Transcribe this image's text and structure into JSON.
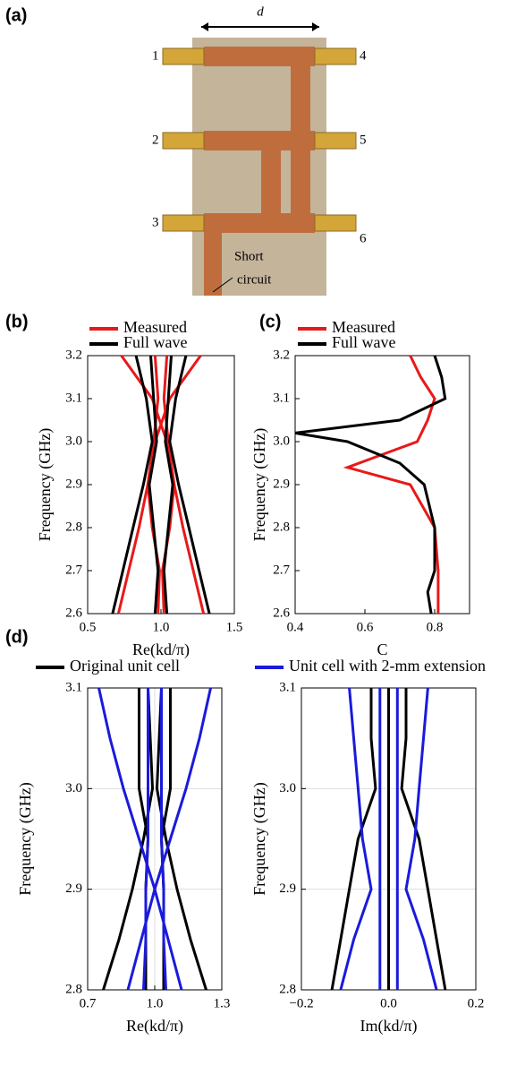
{
  "photo": {
    "label": "(a)",
    "dimension": "d",
    "ports": [
      "1",
      "2",
      "3",
      "4",
      "5",
      "6"
    ],
    "note": [
      "Short",
      "circuit"
    ]
  },
  "chart_data": [
    {
      "type": "line",
      "panel": "(b)",
      "xlabel": "Re(kd/π)",
      "ylabel": "Frequency (GHz)",
      "xlim": [
        0.5,
        1.5
      ],
      "xticks": [
        0.5,
        {
          "value": 1,
          "label": "1.0"
        },
        1.5
      ],
      "ylim": [
        2.6,
        3.2
      ],
      "yticks": [
        2.6,
        2.7,
        2.8,
        2.9,
        {
          "value": 3,
          "label": "3.0"
        },
        3.1,
        3.2
      ],
      "grid": false,
      "series": [
        {
          "name": "Measured",
          "color": "#e8191a",
          "branches": [
            {
              "y": [
                2.6,
                2.7,
                2.8,
                2.9,
                3.0,
                3.1,
                3.2
              ],
              "x": [
                0.71,
                0.78,
                0.85,
                0.91,
                0.96,
                1.06,
                1.27
              ]
            },
            {
              "y": [
                2.6,
                2.7,
                2.8,
                2.9,
                3.0,
                3.1,
                3.2
              ],
              "x": [
                1.29,
                1.22,
                1.15,
                1.09,
                1.04,
                0.94,
                0.73
              ]
            },
            {
              "y": [
                2.6,
                2.7,
                2.8,
                2.9,
                3.0,
                3.1,
                3.2
              ],
              "x": [
                0.98,
                0.99,
                0.94,
                0.91,
                0.95,
                0.98,
                0.96
              ]
            },
            {
              "y": [
                2.6,
                2.7,
                2.8,
                2.9,
                3.0,
                3.1,
                3.2
              ],
              "x": [
                1.02,
                1.01,
                1.06,
                1.09,
                1.05,
                1.02,
                1.04
              ]
            }
          ]
        },
        {
          "name": "Full wave",
          "color": "#000000",
          "branches": [
            {
              "y": [
                2.6,
                2.7,
                2.8,
                2.9,
                3.0,
                3.1,
                3.2
              ],
              "x": [
                0.67,
                0.74,
                0.81,
                0.88,
                0.94,
                0.9,
                0.83
              ]
            },
            {
              "y": [
                2.6,
                2.7,
                2.8,
                2.9,
                3.0,
                3.1,
                3.2
              ],
              "x": [
                1.33,
                1.26,
                1.19,
                1.12,
                1.06,
                1.1,
                1.17
              ]
            },
            {
              "y": [
                2.6,
                2.7,
                2.8,
                2.9,
                3.0,
                3.1,
                3.2
              ],
              "x": [
                0.96,
                0.98,
                0.95,
                0.92,
                0.97,
                0.95,
                0.93
              ]
            },
            {
              "y": [
                2.6,
                2.7,
                2.8,
                2.9,
                3.0,
                3.1,
                3.2
              ],
              "x": [
                1.04,
                1.02,
                1.05,
                1.08,
                1.03,
                1.05,
                1.07
              ]
            }
          ]
        }
      ]
    },
    {
      "type": "line",
      "panel": "(c)",
      "xlabel": "C",
      "ylabel": "Frequency (GHz)",
      "xlim": [
        0.4,
        0.9
      ],
      "xticks": [
        0.4,
        0.6,
        0.8
      ],
      "ylim": [
        2.6,
        3.2
      ],
      "yticks": [
        2.6,
        2.7,
        2.8,
        2.9,
        {
          "value": 3,
          "label": "3.0"
        },
        3.1,
        3.2
      ],
      "grid": false,
      "series": [
        {
          "name": "Measured",
          "color": "#e8191a",
          "branches": [
            {
              "y": [
                2.6,
                2.7,
                2.8,
                2.9,
                2.94,
                2.97,
                3.0,
                3.05,
                3.1,
                3.15,
                3.2
              ],
              "x": [
                0.81,
                0.81,
                0.8,
                0.73,
                0.55,
                0.65,
                0.75,
                0.78,
                0.8,
                0.76,
                0.73
              ]
            }
          ]
        },
        {
          "name": "Full wave",
          "color": "#000000",
          "branches": [
            {
              "y": [
                2.6,
                2.65,
                2.7,
                2.8,
                2.9,
                2.95,
                3.0,
                3.02,
                3.05,
                3.1,
                3.15,
                3.2
              ],
              "x": [
                0.79,
                0.78,
                0.8,
                0.8,
                0.77,
                0.7,
                0.55,
                0.4,
                0.7,
                0.83,
                0.82,
                0.8
              ]
            }
          ]
        }
      ]
    },
    {
      "type": "line",
      "panel": "(d)",
      "xlabel": "Re(kd/π)",
      "ylabel": "Frequency (GHz)",
      "xlim": [
        0.7,
        1.3
      ],
      "xticks": [
        0.7,
        {
          "value": 1,
          "label": "1.0"
        },
        1.3
      ],
      "ylim": [
        2.8,
        3.1
      ],
      "yticks": [
        2.8,
        2.9,
        {
          "value": 3,
          "label": "3.0"
        },
        3.1
      ],
      "grid": true,
      "series": [
        {
          "name": "Original unit cell",
          "color": "#000000",
          "branches": [
            {
              "y": [
                2.8,
                2.85,
                2.9,
                2.95,
                3.0,
                3.05,
                3.1
              ],
              "x": [
                0.77,
                0.84,
                0.9,
                0.95,
                0.99,
                0.98,
                0.97
              ]
            },
            {
              "y": [
                2.8,
                2.85,
                2.9,
                2.95,
                3.0,
                3.05,
                3.1
              ],
              "x": [
                1.23,
                1.16,
                1.1,
                1.05,
                1.01,
                1.02,
                1.03
              ]
            },
            {
              "y": [
                2.8,
                2.85,
                2.9,
                2.95,
                3.0,
                3.05,
                3.1
              ],
              "x": [
                0.96,
                0.96,
                0.96,
                0.97,
                0.93,
                0.93,
                0.93
              ]
            },
            {
              "y": [
                2.8,
                2.85,
                2.9,
                2.95,
                3.0,
                3.05,
                3.1
              ],
              "x": [
                1.04,
                1.04,
                1.04,
                1.03,
                1.07,
                1.07,
                1.07
              ]
            }
          ]
        },
        {
          "name": "Unit cell with 2-mm extension",
          "color": "#1a1adc",
          "branches": [
            {
              "y": [
                2.8,
                2.85,
                2.9,
                2.95,
                3.0,
                3.05,
                3.1
              ],
              "x": [
                1.12,
                1.06,
                1.0,
                0.93,
                0.86,
                0.8,
                0.75
              ]
            },
            {
              "y": [
                2.8,
                2.85,
                2.9,
                2.95,
                3.0,
                3.05,
                3.1
              ],
              "x": [
                0.88,
                0.94,
                1.0,
                1.07,
                1.14,
                1.2,
                1.25
              ]
            },
            {
              "y": [
                2.8,
                2.85,
                2.9,
                2.95,
                3.0,
                3.05,
                3.1
              ],
              "x": [
                0.95,
                0.96,
                0.96,
                0.97,
                0.97,
                0.97,
                0.97
              ]
            },
            {
              "y": [
                2.8,
                2.85,
                2.9,
                2.95,
                3.0,
                3.05,
                3.1
              ],
              "x": [
                1.05,
                1.04,
                1.04,
                1.03,
                1.03,
                1.03,
                1.03
              ]
            }
          ]
        }
      ]
    },
    {
      "type": "line",
      "xlabel": "Im(kd/π)",
      "ylabel": "Frequency (GHz)",
      "xlim": [
        -0.2,
        0.2
      ],
      "xticks": [
        {
          "value": -0.2,
          "label": "−0.2"
        },
        {
          "value": 0,
          "label": "0.0"
        },
        0.2
      ],
      "ylim": [
        2.8,
        3.1
      ],
      "yticks": [
        2.8,
        2.9,
        {
          "value": 3,
          "label": "3.0"
        },
        3.1
      ],
      "grid": true,
      "series": [
        {
          "color": "#000000",
          "branches": [
            {
              "y": [
                2.8,
                2.85,
                2.9,
                2.95,
                3.0,
                3.05,
                3.1
              ],
              "x": [
                -0.13,
                -0.11,
                -0.09,
                -0.07,
                -0.03,
                -0.04,
                -0.04
              ]
            },
            {
              "y": [
                2.8,
                2.85,
                2.9,
                2.95,
                3.0,
                3.05,
                3.1
              ],
              "x": [
                0.13,
                0.11,
                0.09,
                0.07,
                0.03,
                0.04,
                0.04
              ]
            },
            {
              "y": [
                2.8,
                2.85,
                2.9,
                2.95,
                3.0,
                3.05,
                3.1
              ],
              "x": [
                0,
                0,
                0,
                0,
                0,
                0,
                0
              ]
            }
          ]
        },
        {
          "color": "#1a1adc",
          "branches": [
            {
              "y": [
                2.8,
                2.85,
                2.9,
                2.95,
                3.0,
                3.05,
                3.1
              ],
              "x": [
                -0.11,
                -0.08,
                -0.04,
                -0.06,
                -0.07,
                -0.08,
                -0.09
              ]
            },
            {
              "y": [
                2.8,
                2.85,
                2.9,
                2.95,
                3.0,
                3.05,
                3.1
              ],
              "x": [
                0.11,
                0.08,
                0.04,
                0.06,
                0.07,
                0.08,
                0.09
              ]
            },
            {
              "y": [
                2.8,
                2.85,
                2.9,
                2.95,
                3.0,
                3.05,
                3.1
              ],
              "x": [
                -0.02,
                -0.02,
                -0.02,
                -0.02,
                -0.02,
                -0.02,
                -0.02
              ]
            },
            {
              "y": [
                2.8,
                2.85,
                2.9,
                2.95,
                3.0,
                3.05,
                3.1
              ],
              "x": [
                0.02,
                0.02,
                0.02,
                0.02,
                0.02,
                0.02,
                0.02
              ]
            }
          ]
        }
      ]
    }
  ]
}
